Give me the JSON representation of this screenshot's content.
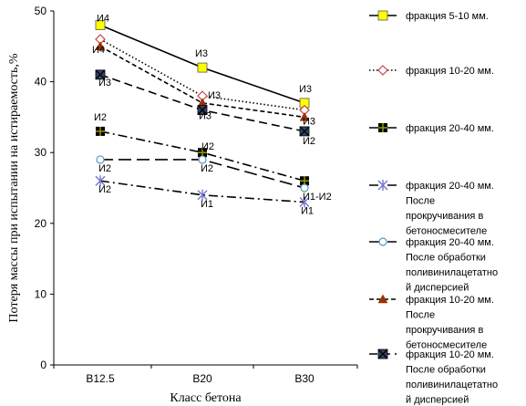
{
  "chart_data": {
    "type": "line",
    "title": "",
    "xlabel": "Класс бетона",
    "ylabel": "Потеря массы при испытании на истираемость,%",
    "categories": [
      "B12.5",
      "B20",
      "B30"
    ],
    "ylim": [
      0,
      50
    ],
    "yticks": [
      0,
      10,
      20,
      30,
      40,
      50
    ],
    "grid": false,
    "legend_position": "right",
    "series": [
      {
        "name": "фракция 5-10 мм.",
        "legend_lines": [
          "фракция 5-10 мм."
        ],
        "values": [
          48,
          42,
          37
        ],
        "labels": [
          "И4",
          "И3",
          "И3"
        ],
        "color": "#000000",
        "marker": "square",
        "marker_fill": "#ffff00",
        "dash": ""
      },
      {
        "name": "фракция 10-20 мм.",
        "legend_lines": [
          "фракция 10-20 мм."
        ],
        "values": [
          46,
          38,
          36
        ],
        "labels": [
          "",
          "",
          ""
        ],
        "color": "#000000",
        "marker": "diamond",
        "marker_fill": "#ff9999",
        "dash": "1.5,2.5"
      },
      {
        "name": "фракция 20-40 мм.",
        "legend_lines": [
          "фракция 20-40 мм."
        ],
        "values": [
          33,
          30,
          26
        ],
        "labels": [
          "И2",
          "И2",
          ""
        ],
        "color": "#000000",
        "marker": "plus",
        "marker_fill": "#999900",
        "dash": "10,4,2,4"
      },
      {
        "name": "фракция 20-40 мм. После прокручивания в бетоносмесителе",
        "legend_lines": [
          "фракция 20-40 мм.",
          "После",
          "прокручивания в",
          "бетоносмесителе"
        ],
        "values": [
          26,
          24,
          23
        ],
        "labels": [
          "И2",
          "И1",
          "И1"
        ],
        "color": "#000000",
        "marker": "star",
        "marker_fill": "#7777cc",
        "dash": "10,4,2,4"
      },
      {
        "name": "фракция 20-40 мм. После обработки поливинилацетатной дисперсией",
        "legend_lines": [
          "фракция 20-40 мм.",
          "После обработки",
          "поливинилацетатно",
          "й дисперсией"
        ],
        "values": [
          29,
          29,
          25
        ],
        "labels": [
          "И2",
          "И2",
          "И1-И2"
        ],
        "color": "#000000",
        "marker": "circle",
        "marker_fill": "#ffffff",
        "dash": "14,6"
      },
      {
        "name": "фракция 10-20 мм. После прокручивания в бетоносмесителе",
        "legend_lines": [
          "фракция 10-20 мм.",
          "После",
          "прокручивания в",
          "бетоносмесителе"
        ],
        "values": [
          45,
          37,
          35
        ],
        "labels": [
          "И4",
          "И3",
          "И3"
        ],
        "color": "#000000",
        "marker": "triangle",
        "marker_fill": "#993300",
        "dash": "5,3"
      },
      {
        "name": "фракция 10-20 мм. После обработки поливинилацетатной дисперсией",
        "legend_lines": [
          "фракция 10-20 мм.",
          "После обработки",
          "поливинилацетатно",
          "й дисперсией"
        ],
        "values": [
          41,
          36,
          33
        ],
        "labels": [
          "И3",
          "И3",
          "И2"
        ],
        "color": "#000000",
        "marker": "xsquare",
        "marker_fill": "#334466",
        "dash": "9,5"
      }
    ]
  }
}
